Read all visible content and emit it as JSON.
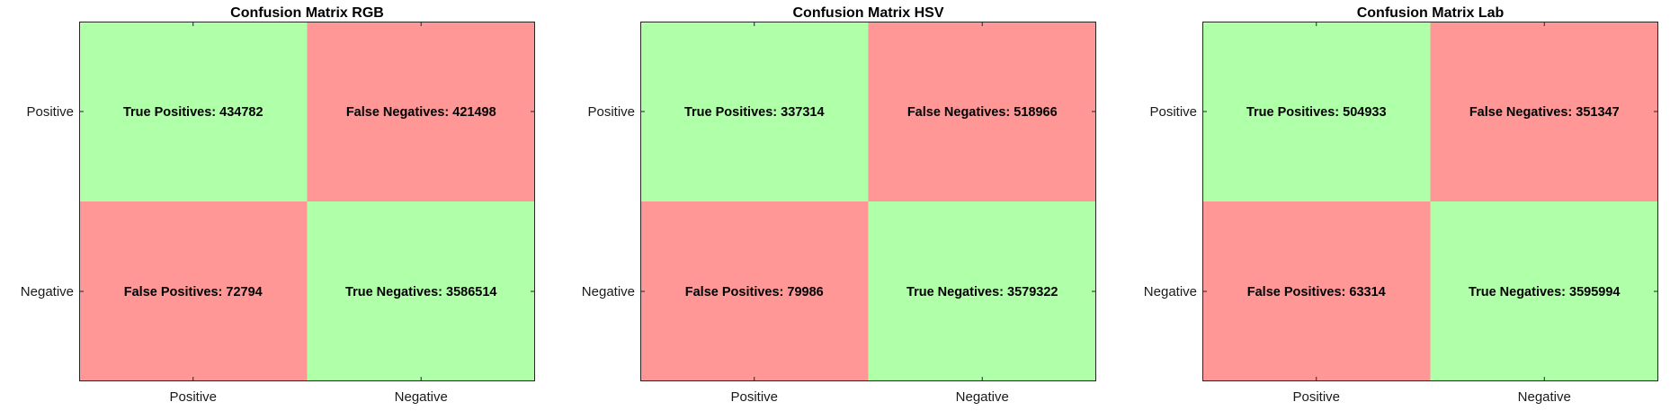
{
  "colors": {
    "true_cell": "#b0ffa9",
    "false_cell": "#ff9797"
  },
  "chart_data": [
    {
      "type": "heatmap",
      "title": "Confusion Matrix RGB",
      "row_labels": [
        "Positive",
        "Negative"
      ],
      "col_labels": [
        "Positive",
        "Negative"
      ],
      "cells": [
        [
          {
            "label": "True Positives: 434782",
            "value": 434782,
            "kind": "true"
          },
          {
            "label": "False Negatives: 421498",
            "value": 421498,
            "kind": "false"
          }
        ],
        [
          {
            "label": "False Positives: 72794",
            "value": 72794,
            "kind": "false"
          },
          {
            "label": "True Negatives: 3586514",
            "value": 3586514,
            "kind": "true"
          }
        ]
      ]
    },
    {
      "type": "heatmap",
      "title": "Confusion Matrix HSV",
      "row_labels": [
        "Positive",
        "Negative"
      ],
      "col_labels": [
        "Positive",
        "Negative"
      ],
      "cells": [
        [
          {
            "label": "True Positives: 337314",
            "value": 337314,
            "kind": "true"
          },
          {
            "label": "False Negatives: 518966",
            "value": 518966,
            "kind": "false"
          }
        ],
        [
          {
            "label": "False Positives: 79986",
            "value": 79986,
            "kind": "false"
          },
          {
            "label": "True Negatives: 3579322",
            "value": 3579322,
            "kind": "true"
          }
        ]
      ]
    },
    {
      "type": "heatmap",
      "title": "Confusion Matrix Lab",
      "row_labels": [
        "Positive",
        "Negative"
      ],
      "col_labels": [
        "Positive",
        "Negative"
      ],
      "cells": [
        [
          {
            "label": "True Positives: 504933",
            "value": 504933,
            "kind": "true"
          },
          {
            "label": "False Negatives: 351347",
            "value": 351347,
            "kind": "false"
          }
        ],
        [
          {
            "label": "False Positives: 63314",
            "value": 63314,
            "kind": "false"
          },
          {
            "label": "True Negatives: 3595994",
            "value": 3595994,
            "kind": "true"
          }
        ]
      ]
    }
  ]
}
